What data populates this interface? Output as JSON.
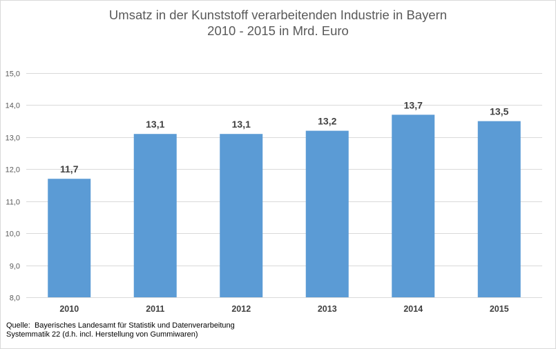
{
  "chart_data": {
    "type": "bar",
    "title": "Umsatz in der Kunststoff verarbeitenden Industrie in Bayern",
    "subtitle": "2010 - 2015 in Mrd. Euro",
    "xlabel": "",
    "ylabel": "",
    "categories": [
      "2010",
      "2011",
      "2012",
      "2013",
      "2014",
      "2015"
    ],
    "values": [
      11.7,
      13.1,
      13.1,
      13.2,
      13.7,
      13.5
    ],
    "value_labels": [
      "11,7",
      "13,1",
      "13,1",
      "13,2",
      "13,7",
      "13,5"
    ],
    "ylim": [
      8.0,
      15.0
    ],
    "yticks": [
      8.0,
      9.0,
      10.0,
      11.0,
      12.0,
      13.0,
      14.0,
      15.0
    ],
    "ytick_labels": [
      "8,0",
      "9,0",
      "10,0",
      "11,0",
      "12,0",
      "13,0",
      "14,0",
      "15,0"
    ],
    "grid": true,
    "legend": "none",
    "bar_color": "#5b9bd5",
    "grid_color": "#d9d9d9"
  },
  "source": {
    "line1": "Quelle:  Bayerisches Landesamt für Statistik und Datenverarbeitung",
    "line2": "Systemmatik 22 (d.h. incl. Herstellung von Gummiwaren)"
  }
}
